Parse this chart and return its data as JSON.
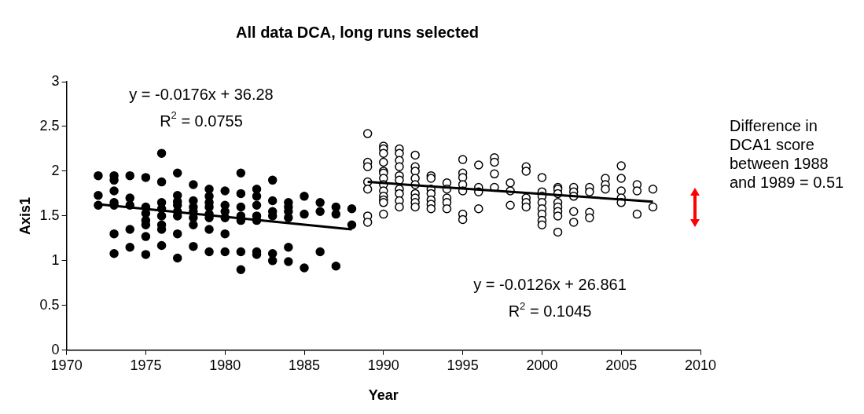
{
  "chart_data": {
    "type": "scatter",
    "title": "All data DCA, long runs selected",
    "xlabel": "Year",
    "ylabel": "Axis1",
    "xlim": [
      1970,
      2010
    ],
    "xticks": [
      1970,
      1975,
      1980,
      1985,
      1990,
      1995,
      2000,
      2005,
      2010
    ],
    "ylim": [
      0,
      3
    ],
    "yticks": [
      0,
      0.5,
      1,
      1.5,
      2,
      2.5,
      3
    ],
    "grid": false,
    "legend": false,
    "marker": "circle",
    "series": [
      {
        "color": "#000000",
        "x": [
          1972,
          1972,
          1972,
          1973,
          1973,
          1973,
          1973,
          1973,
          1973,
          1973,
          1974,
          1974,
          1974,
          1974,
          1974,
          1975,
          1975,
          1975,
          1975,
          1975,
          1975,
          1975,
          1976,
          1976,
          1976,
          1976,
          1976,
          1976,
          1976,
          1976,
          1977,
          1977,
          1977,
          1977,
          1977,
          1977,
          1977,
          1977,
          1978,
          1978,
          1978,
          1978,
          1978,
          1978,
          1978,
          1979,
          1979,
          1979,
          1979,
          1979,
          1979,
          1979,
          1979,
          1980,
          1980,
          1980,
          1980,
          1980,
          1980,
          1981,
          1981,
          1981,
          1981,
          1981,
          1981,
          1981,
          1982,
          1982,
          1982,
          1982,
          1982,
          1982,
          1982,
          1983,
          1983,
          1983,
          1983,
          1983,
          1983,
          1984,
          1984,
          1984,
          1984,
          1984,
          1984,
          1985,
          1985,
          1985,
          1986,
          1986,
          1986,
          1987,
          1987,
          1987,
          1988,
          1988
        ],
        "values": [
          1.95,
          1.73,
          1.62,
          1.95,
          1.9,
          1.78,
          1.65,
          1.62,
          1.3,
          1.08,
          1.95,
          1.7,
          1.62,
          1.35,
          1.15,
          1.93,
          1.6,
          1.53,
          1.45,
          1.4,
          1.27,
          1.07,
          2.2,
          1.88,
          1.65,
          1.58,
          1.5,
          1.4,
          1.35,
          1.17,
          1.98,
          1.73,
          1.66,
          1.62,
          1.55,
          1.5,
          1.3,
          1.03,
          1.85,
          1.67,
          1.6,
          1.55,
          1.48,
          1.4,
          1.16,
          1.8,
          1.72,
          1.65,
          1.6,
          1.52,
          1.48,
          1.35,
          1.1,
          1.78,
          1.62,
          1.55,
          1.48,
          1.3,
          1.1,
          1.98,
          1.75,
          1.6,
          1.5,
          1.45,
          1.1,
          0.9,
          1.8,
          1.72,
          1.62,
          1.5,
          1.45,
          1.1,
          1.07,
          1.9,
          1.67,
          1.55,
          1.5,
          1.08,
          1.0,
          1.65,
          1.6,
          1.55,
          1.48,
          1.15,
          0.99,
          1.72,
          1.52,
          0.92,
          1.65,
          1.55,
          1.1,
          1.6,
          1.52,
          0.94,
          1.58,
          1.4
        ]
      },
      {
        "color": "#000000",
        "x": [
          1989,
          1989,
          1989,
          1989,
          1989,
          1989,
          1989,
          1990,
          1990,
          1990,
          1990,
          1990,
          1990,
          1990,
          1990,
          1990,
          1990,
          1990,
          1990,
          1990,
          1991,
          1991,
          1991,
          1991,
          1991,
          1991,
          1991,
          1991,
          1991,
          1991,
          1992,
          1992,
          1992,
          1992,
          1992,
          1992,
          1992,
          1992,
          1992,
          1993,
          1993,
          1993,
          1993,
          1993,
          1993,
          1993,
          1994,
          1994,
          1994,
          1994,
          1994,
          1995,
          1995,
          1995,
          1995,
          1995,
          1995,
          1995,
          1996,
          1996,
          1996,
          1996,
          1997,
          1997,
          1997,
          1997,
          1998,
          1998,
          1998,
          1999,
          1999,
          1999,
          1999,
          1999,
          2000,
          2000,
          2000,
          2000,
          2000,
          2000,
          2000,
          2000,
          2001,
          2001,
          2001,
          2001,
          2001,
          2001,
          2001,
          2001,
          2002,
          2002,
          2002,
          2002,
          2002,
          2003,
          2003,
          2003,
          2003,
          2004,
          2004,
          2004,
          2005,
          2005,
          2005,
          2005,
          2005,
          2006,
          2006,
          2006,
          2007,
          2007
        ],
        "values": [
          2.42,
          2.1,
          2.05,
          1.88,
          1.8,
          1.5,
          1.43,
          2.28,
          2.25,
          2.2,
          2.1,
          2.0,
          1.98,
          1.92,
          1.85,
          1.78,
          1.72,
          1.68,
          1.65,
          1.52,
          2.25,
          2.2,
          2.12,
          2.05,
          1.95,
          1.9,
          1.8,
          1.75,
          1.67,
          1.6,
          2.18,
          2.05,
          2.0,
          1.92,
          1.85,
          1.75,
          1.7,
          1.65,
          1.6,
          1.95,
          1.92,
          1.8,
          1.75,
          1.68,
          1.63,
          1.58,
          1.87,
          1.8,
          1.7,
          1.65,
          1.58,
          2.13,
          1.98,
          1.93,
          1.85,
          1.78,
          1.52,
          1.46,
          2.07,
          1.82,
          1.77,
          1.58,
          2.15,
          2.1,
          1.97,
          1.82,
          1.87,
          1.78,
          1.62,
          2.05,
          2.0,
          1.7,
          1.65,
          1.6,
          1.93,
          1.77,
          1.72,
          1.65,
          1.58,
          1.52,
          1.45,
          1.4,
          1.82,
          1.8,
          1.75,
          1.65,
          1.6,
          1.55,
          1.5,
          1.32,
          1.82,
          1.77,
          1.72,
          1.55,
          1.43,
          1.82,
          1.77,
          1.54,
          1.48,
          1.92,
          1.85,
          1.8,
          2.06,
          1.92,
          1.78,
          1.7,
          1.65,
          1.85,
          1.78,
          1.52,
          1.8,
          1.6
        ]
      },
      {
        "type": "line",
        "color": "#000000",
        "marker": "none",
        "x": [
          1972,
          1988
        ],
        "values": [
          1.63,
          1.35
        ]
      },
      {
        "type": "line",
        "color": "#000000",
        "marker": "none",
        "x": [
          1989,
          2007
        ],
        "values": [
          1.88,
          1.66
        ]
      }
    ],
    "annotations": [
      "y = -0.0176x + 36.28",
      "R$^{2}$ = 0.0755",
      "y = -0.0126x + 26.861",
      "R$^{2}$ = 0.1045",
      "Difference in DCA1 score between 1988 and 1989 = 0.51"
    ]
  }
}
